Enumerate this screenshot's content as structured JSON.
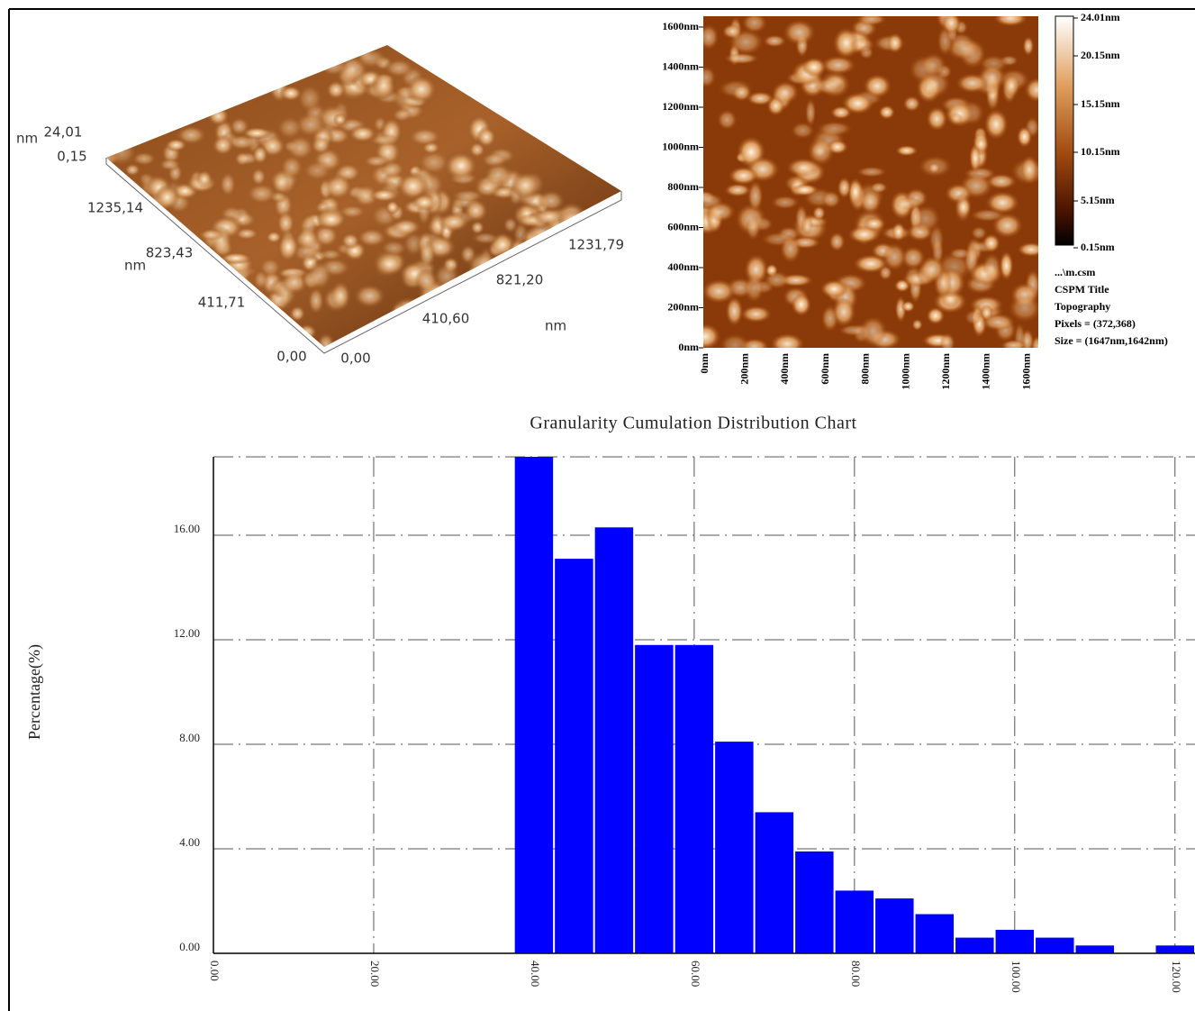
{
  "afm_3d": {
    "z_unit": "nm",
    "z_max": "24,01",
    "z_min": "0,15",
    "y_labels": [
      "1235,14",
      "823,43",
      "411,71",
      "0,00"
    ],
    "y_unit": "nm",
    "x_labels": [
      "0,00",
      "410,60",
      "821,20",
      "1231,79"
    ],
    "x_unit": "nm"
  },
  "afm_2d": {
    "y_ticks": [
      "1600nm",
      "1400nm",
      "1200nm",
      "1000nm",
      "800nm",
      "600nm",
      "400nm",
      "200nm",
      "0nm"
    ],
    "x_ticks": [
      "0nm",
      "200nm",
      "400nm",
      "600nm",
      "800nm",
      "1000nm",
      "1200nm",
      "1400nm",
      "1600nm"
    ],
    "colorbar_labels": [
      "24.01nm",
      "20.15nm",
      "15.15nm",
      "10.15nm",
      "5.15nm",
      "0.15nm"
    ],
    "info": [
      "...\\m.csm",
      "CSPM Title",
      "Topography",
      "Pixels = (372,368)",
      "Size = (1647nm,1642nm)"
    ]
  },
  "chart_data": {
    "type": "histogram",
    "title": "Granularity Cumulation Distribution  Chart",
    "y_label": "Percentage(%)",
    "bins": [
      37.5,
      42.5,
      47.5,
      52.5,
      57.5,
      62.5,
      67.5,
      72.5,
      77.5,
      82.5,
      87.5,
      92.5,
      97.5,
      102.5,
      107.5,
      112.5,
      117.5,
      122.5
    ],
    "values": [
      19.0,
      15.1,
      16.3,
      11.8,
      11.8,
      8.1,
      5.4,
      3.9,
      2.4,
      2.1,
      1.5,
      0.6,
      0.9,
      0.6,
      0.3,
      0,
      0.3
    ],
    "color": "#0000ff",
    "xlim": [
      0,
      122.5
    ],
    "ylim": [
      0,
      19
    ],
    "xticks": [
      {
        "value": 0,
        "label": "0.00"
      },
      {
        "value": 20,
        "label": "20.00"
      },
      {
        "value": 40,
        "label": "40.00"
      },
      {
        "value": 60,
        "label": "60.00"
      },
      {
        "value": 80,
        "label": "80.00"
      },
      {
        "value": 100,
        "label": "100.00"
      },
      {
        "value": 120,
        "label": "120.00"
      }
    ],
    "yticks": [
      {
        "value": 0,
        "label": "0.00"
      },
      {
        "value": 4,
        "label": "4.00"
      },
      {
        "value": 8,
        "label": "8.00"
      },
      {
        "value": 12,
        "label": "12.00"
      },
      {
        "value": 16,
        "label": "16.00"
      }
    ],
    "grid": true
  }
}
